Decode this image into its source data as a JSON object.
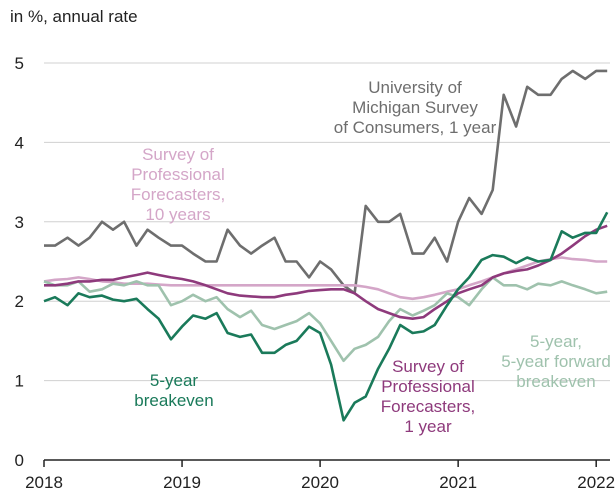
{
  "chart_data": {
    "type": "line",
    "y_label": "in %, annual rate",
    "x": [
      2018,
      2018.08,
      2018.17,
      2018.25,
      2018.33,
      2018.42,
      2018.5,
      2018.58,
      2018.67,
      2018.75,
      2018.83,
      2018.92,
      2019,
      2019.08,
      2019.17,
      2019.25,
      2019.33,
      2019.42,
      2019.5,
      2019.58,
      2019.67,
      2019.75,
      2019.83,
      2019.92,
      2020,
      2020.08,
      2020.17,
      2020.25,
      2020.33,
      2020.42,
      2020.5,
      2020.58,
      2020.67,
      2020.75,
      2020.83,
      2020.92,
      2021,
      2021.08,
      2021.17,
      2021.25,
      2021.33,
      2021.42,
      2021.5,
      2021.58,
      2021.67,
      2021.75,
      2021.83,
      2021.92,
      2022,
      2022.08
    ],
    "xlim": [
      2018,
      2022.1
    ],
    "xticks": [
      2018,
      2019,
      2020,
      2021,
      2022
    ],
    "ylim": [
      0,
      5
    ],
    "yticks": [
      0,
      1,
      2,
      3,
      4,
      5
    ],
    "grid": true,
    "series": [
      {
        "name": "University of\nMichigan Survey\nof Consumers, 1 year",
        "color": "#6e6e6e",
        "values": [
          2.7,
          2.7,
          2.8,
          2.7,
          2.8,
          3.0,
          2.9,
          3.0,
          2.7,
          2.9,
          2.8,
          2.7,
          2.7,
          2.6,
          2.5,
          2.5,
          2.9,
          2.7,
          2.6,
          2.7,
          2.8,
          2.5,
          2.5,
          2.3,
          2.5,
          2.4,
          2.2,
          2.1,
          3.2,
          3.0,
          3.0,
          3.1,
          2.6,
          2.6,
          2.8,
          2.5,
          3.0,
          3.3,
          3.1,
          3.4,
          4.6,
          4.2,
          4.7,
          4.6,
          4.6,
          4.8,
          4.9,
          4.8,
          4.9,
          4.9
        ]
      },
      {
        "name": "Survey of\nProfessional\nForecasters,\n10 years",
        "color": "#d4a6c8",
        "values": [
          2.25,
          2.27,
          2.28,
          2.3,
          2.28,
          2.25,
          2.24,
          2.22,
          2.22,
          2.22,
          2.21,
          2.2,
          2.2,
          2.2,
          2.2,
          2.2,
          2.2,
          2.2,
          2.2,
          2.2,
          2.2,
          2.2,
          2.2,
          2.2,
          2.2,
          2.2,
          2.2,
          2.2,
          2.18,
          2.15,
          2.1,
          2.05,
          2.03,
          2.05,
          2.08,
          2.12,
          2.15,
          2.2,
          2.25,
          2.3,
          2.35,
          2.4,
          2.45,
          2.5,
          2.53,
          2.55,
          2.53,
          2.52,
          2.5,
          2.5
        ]
      },
      {
        "name": "5-year,\n5-year forward\nbreakeven",
        "color": "#9fc2ad",
        "values": [
          2.25,
          2.2,
          2.2,
          2.25,
          2.12,
          2.15,
          2.22,
          2.2,
          2.25,
          2.2,
          2.2,
          1.95,
          2.0,
          2.08,
          2.0,
          2.05,
          1.9,
          1.8,
          1.88,
          1.7,
          1.65,
          1.7,
          1.75,
          1.85,
          1.72,
          1.5,
          1.25,
          1.4,
          1.45,
          1.55,
          1.75,
          1.9,
          1.82,
          1.88,
          1.95,
          2.1,
          2.05,
          1.95,
          2.15,
          2.3,
          2.2,
          2.2,
          2.15,
          2.22,
          2.2,
          2.25,
          2.2,
          2.15,
          2.1,
          2.12
        ]
      },
      {
        "name": "Survey of\nProfessional\nForecasters,\n1 year",
        "color": "#8e3a7c",
        "values": [
          2.2,
          2.2,
          2.22,
          2.25,
          2.25,
          2.27,
          2.27,
          2.3,
          2.33,
          2.36,
          2.33,
          2.3,
          2.28,
          2.25,
          2.2,
          2.15,
          2.1,
          2.07,
          2.06,
          2.05,
          2.05,
          2.08,
          2.1,
          2.13,
          2.14,
          2.15,
          2.15,
          2.1,
          2.0,
          1.9,
          1.85,
          1.8,
          1.78,
          1.8,
          1.9,
          2.0,
          2.1,
          2.15,
          2.2,
          2.3,
          2.35,
          2.38,
          2.4,
          2.45,
          2.52,
          2.6,
          2.7,
          2.82,
          2.9,
          2.95
        ]
      },
      {
        "name": "5-year\nbreakeven",
        "color": "#1a7a5a",
        "values": [
          2.0,
          2.05,
          1.95,
          2.1,
          2.05,
          2.07,
          2.02,
          2.0,
          2.03,
          1.9,
          1.78,
          1.52,
          1.68,
          1.82,
          1.78,
          1.85,
          1.6,
          1.55,
          1.58,
          1.35,
          1.35,
          1.45,
          1.5,
          1.68,
          1.6,
          1.2,
          0.5,
          0.72,
          0.8,
          1.15,
          1.4,
          1.7,
          1.6,
          1.62,
          1.7,
          1.95,
          2.15,
          2.3,
          2.52,
          2.58,
          2.56,
          2.48,
          2.55,
          2.5,
          2.52,
          2.88,
          2.8,
          2.86,
          2.86,
          3.12
        ]
      }
    ]
  }
}
